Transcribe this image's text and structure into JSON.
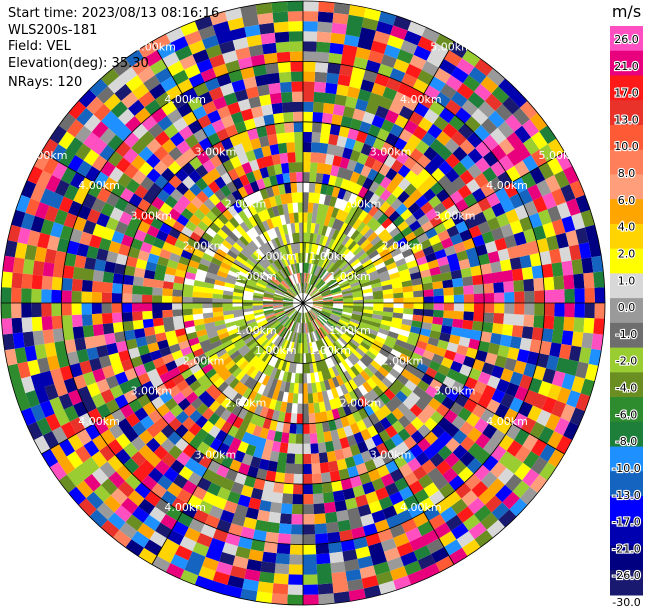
{
  "header": {
    "start_time": "Start time: 2023/08/13 08:16:16",
    "instrument": "WLS200s-181",
    "field": "Field: VEL",
    "elevation": "Elevation(deg): 35.30",
    "nrays": "NRays: 120"
  },
  "colorbar": {
    "unit": "m/s",
    "ticks": [
      "26.0",
      "21.0",
      "17.0",
      "13.0",
      "10.0",
      "8.0",
      "6.0",
      "4.0",
      "2.0",
      "1.0",
      "0.0",
      "-1.0",
      "-2.0",
      "-4.0",
      "-6.0",
      "-8.0",
      "-10.0",
      "-13.0",
      "-17.0",
      "-21.0",
      "-26.0",
      "-30.0"
    ],
    "colors": [
      "#ff4fc0",
      "#e8007c",
      "#ff1a1a",
      "#e8322a",
      "#ff5a36",
      "#ff7f5a",
      "#ff9e7a",
      "#ffa500",
      "#ffd400",
      "#ffff00",
      "#d8d8d8",
      "#9a9a9a",
      "#6e6e6e",
      "#9acd32",
      "#6b8e23",
      "#2e8b2e",
      "#1e7f3a",
      "#1e90ff",
      "#1565c0",
      "#0000ff",
      "#0000b0",
      "#000080",
      "#191970"
    ]
  },
  "chart_data": {
    "type": "ppi",
    "field": "VEL",
    "units": "m/s",
    "elevation_deg": 35.3,
    "nrays": 120,
    "range_ring_labels": [
      "1.00km",
      "2.00km",
      "3.00km",
      "4.00km",
      "5.00km"
    ],
    "value_range": [
      -30.0,
      30.0
    ]
  }
}
